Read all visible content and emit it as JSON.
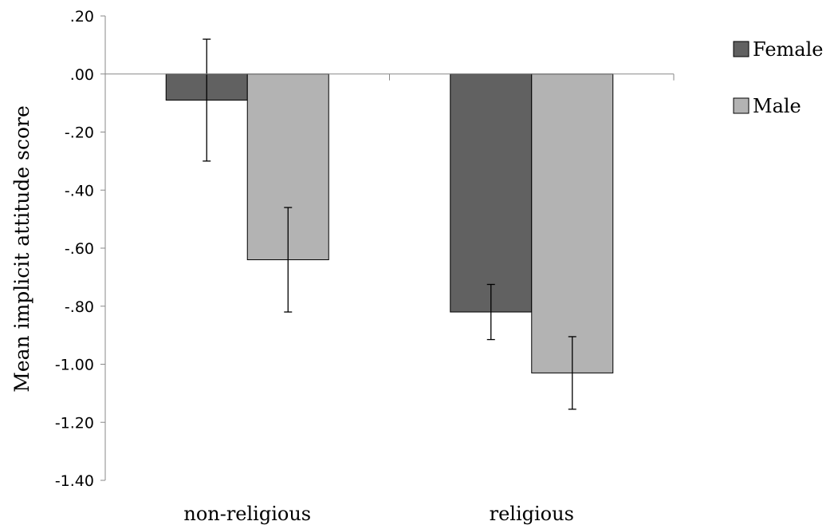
{
  "chart_data": {
    "type": "bar",
    "categories": [
      "non-religious",
      "religious"
    ],
    "series": [
      {
        "name": "Female",
        "color": "#616161",
        "values": [
          -0.09,
          -0.82
        ],
        "error": [
          0.21,
          0.095
        ]
      },
      {
        "name": "Male",
        "color": "#b3b3b3",
        "values": [
          -0.64,
          -1.03
        ],
        "error": [
          0.18,
          0.125
        ]
      }
    ],
    "ylabel": "Mean implicit attitude score",
    "xlabel": "",
    "ylim": [
      -1.4,
      0.2
    ],
    "yticks": [
      0.2,
      0.0,
      -0.2,
      -0.4,
      -0.6,
      -0.8,
      -1.0,
      -1.2,
      -1.4
    ],
    "ytick_labels": [
      ".20",
      ".00",
      "-.20",
      "-.40",
      "-.60",
      "-.80",
      "-1.00",
      "-1.20",
      "-1.40"
    ],
    "legend_position": "top-right",
    "grid": false
  }
}
